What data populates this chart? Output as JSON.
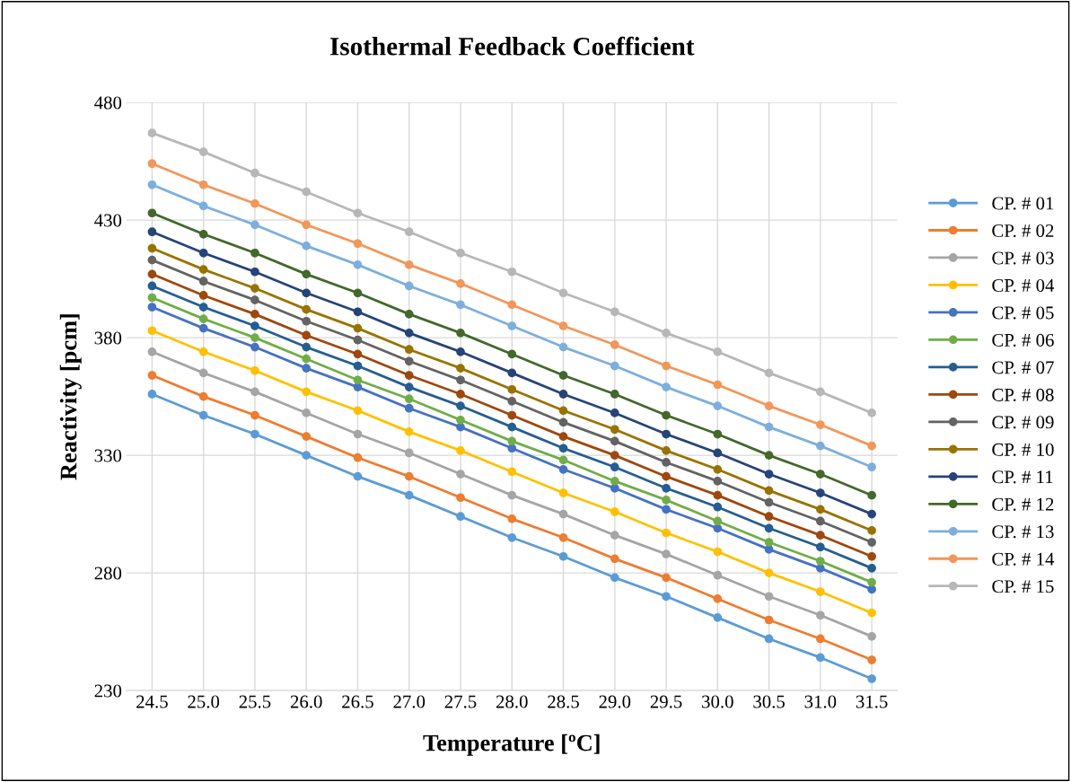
{
  "chart_data": {
    "type": "line",
    "title": "Isothermal Feedback Coefficient",
    "xlabel": "Temperature [ºC]",
    "ylabel": "Reactivity [pcm]",
    "categories": [
      "24.5",
      "25.0",
      "25.5",
      "26.0",
      "26.5",
      "27.0",
      "27.5",
      "28.0",
      "28.5",
      "29.0",
      "29.5",
      "30.0",
      "30.5",
      "31.0",
      "31.5"
    ],
    "ylim": [
      230,
      480
    ],
    "yticks": [
      230,
      280,
      330,
      380,
      430,
      480
    ],
    "grid": true,
    "legend": "right",
    "marker": "circle",
    "line_style": "solid",
    "series": [
      {
        "name": "CP. # 01",
        "color": "#5b9bd5",
        "values": [
          356,
          347,
          339,
          330,
          321,
          313,
          304,
          295,
          287,
          278,
          270,
          261,
          252,
          244,
          235
        ]
      },
      {
        "name": "CP. # 02",
        "color": "#ed7d31",
        "values": [
          364,
          355,
          347,
          338,
          329,
          321,
          312,
          303,
          295,
          286,
          278,
          269,
          260,
          252,
          243
        ]
      },
      {
        "name": "CP. # 03",
        "color": "#a5a5a5",
        "values": [
          374,
          365,
          357,
          348,
          339,
          331,
          322,
          313,
          305,
          296,
          288,
          279,
          270,
          262,
          253
        ]
      },
      {
        "name": "CP. # 04",
        "color": "#ffc000",
        "values": [
          383,
          374,
          366,
          357,
          349,
          340,
          332,
          323,
          314,
          306,
          297,
          289,
          280,
          272,
          263
        ]
      },
      {
        "name": "CP. # 05",
        "color": "#4472c4",
        "values": [
          393,
          384,
          376,
          367,
          359,
          350,
          342,
          333,
          324,
          316,
          307,
          299,
          290,
          282,
          273
        ]
      },
      {
        "name": "CP. # 06",
        "color": "#70ad47",
        "values": [
          397,
          388,
          380,
          371,
          362,
          354,
          345,
          336,
          328,
          319,
          311,
          302,
          293,
          285,
          276
        ]
      },
      {
        "name": "CP. # 07",
        "color": "#255e91",
        "values": [
          402,
          393,
          385,
          376,
          368,
          359,
          351,
          342,
          333,
          325,
          316,
          308,
          299,
          291,
          282
        ]
      },
      {
        "name": "CP. # 08",
        "color": "#9e480e",
        "values": [
          407,
          398,
          390,
          381,
          373,
          364,
          356,
          347,
          338,
          330,
          321,
          313,
          304,
          296,
          287
        ]
      },
      {
        "name": "CP. # 09",
        "color": "#636363",
        "values": [
          413,
          404,
          396,
          387,
          379,
          370,
          362,
          353,
          344,
          336,
          327,
          319,
          310,
          302,
          293
        ]
      },
      {
        "name": "CP. # 10",
        "color": "#997300",
        "values": [
          418,
          409,
          401,
          392,
          384,
          375,
          367,
          358,
          349,
          341,
          332,
          324,
          315,
          307,
          298
        ]
      },
      {
        "name": "CP. # 11",
        "color": "#264478",
        "values": [
          425,
          416,
          408,
          399,
          391,
          382,
          374,
          365,
          356,
          348,
          339,
          331,
          322,
          314,
          305
        ]
      },
      {
        "name": "CP. # 12",
        "color": "#43682b",
        "values": [
          433,
          424,
          416,
          407,
          399,
          390,
          382,
          373,
          364,
          356,
          347,
          339,
          330,
          322,
          313
        ]
      },
      {
        "name": "CP. # 13",
        "color": "#7cafdd",
        "values": [
          445,
          436,
          428,
          419,
          411,
          402,
          394,
          385,
          376,
          368,
          359,
          351,
          342,
          334,
          325
        ]
      },
      {
        "name": "CP. # 14",
        "color": "#f1975a",
        "values": [
          454,
          445,
          437,
          428,
          420,
          411,
          403,
          394,
          385,
          377,
          368,
          360,
          351,
          343,
          334
        ]
      },
      {
        "name": "CP. # 15",
        "color": "#b7b7b7",
        "values": [
          467,
          459,
          450,
          442,
          433,
          425,
          416,
          408,
          399,
          391,
          382,
          374,
          365,
          357,
          348
        ]
      }
    ]
  }
}
